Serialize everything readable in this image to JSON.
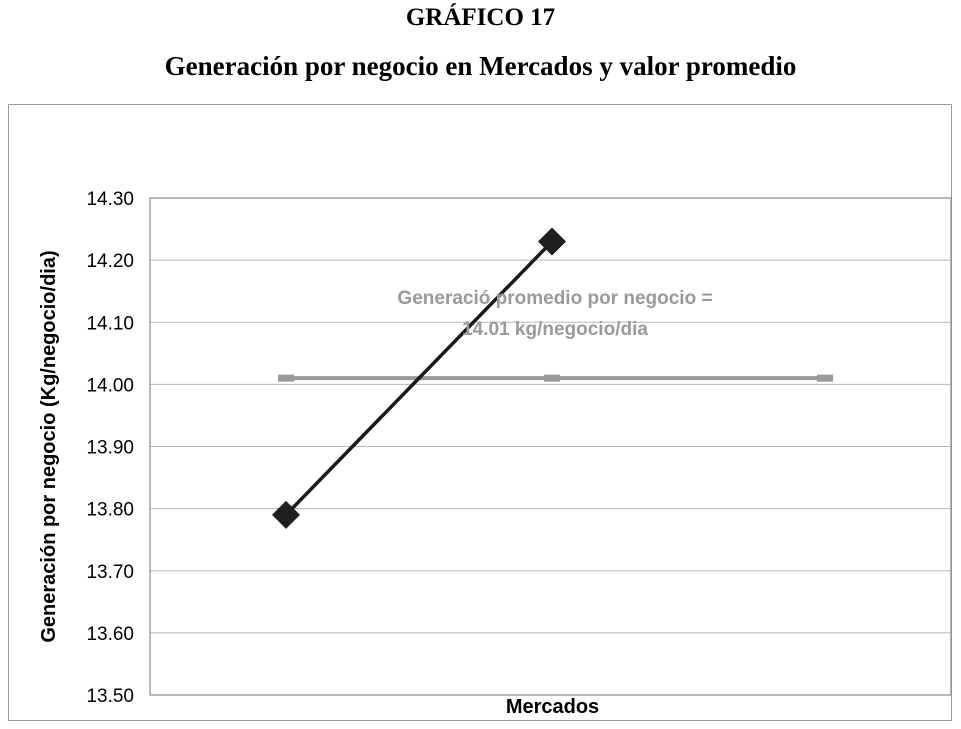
{
  "figure": {
    "number": "GRÁFICO 17",
    "title": "Generación por negocio en Mercados y valor promedio"
  },
  "chart_data": {
    "type": "line",
    "xlabel": "Mercados",
    "ylabel": "Generación por negocio (Kg/negocio/dia)",
    "ylim": [
      13.5,
      14.3
    ],
    "yticks": [
      "13.50",
      "13.60",
      "13.70",
      "13.80",
      "13.90",
      "14.00",
      "14.10",
      "14.20",
      "14.30"
    ],
    "grid": true,
    "legend": "none",
    "series": [
      {
        "x": [
          1,
          2
        ],
        "values": [
          13.79,
          14.23
        ],
        "color": "#1a1a1a",
        "marker": "diamond"
      },
      {
        "x": [
          1,
          2,
          3
        ],
        "values": [
          14.01,
          14.01,
          14.01
        ],
        "color": "#9a9a9a",
        "marker": "dash"
      }
    ],
    "annotation": {
      "lines": [
        "Generació promedio por negocio =",
        "14.01 kg/negocio/dia"
      ],
      "color": "#9a9a9a"
    }
  }
}
